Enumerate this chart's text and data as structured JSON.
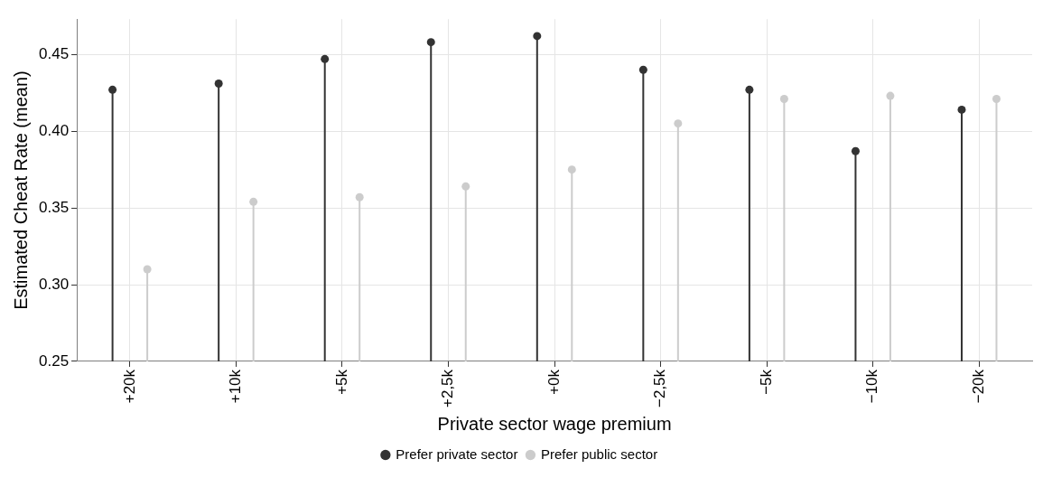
{
  "chart_data": {
    "type": "lollipop",
    "xlabel": "Private sector wage premium",
    "ylabel": "Estimated Cheat Rate (mean)",
    "categories": [
      "+20k",
      "+10k",
      "+5k",
      "+2,5k",
      "+0k",
      "−2,5k",
      "−5k",
      "−10k",
      "−20k"
    ],
    "series": [
      {
        "name": "Prefer private sector",
        "color": "#333333",
        "values": [
          0.427,
          0.431,
          0.447,
          0.458,
          0.462,
          0.44,
          0.427,
          0.387,
          0.414
        ]
      },
      {
        "name": "Prefer public sector",
        "color": "#cccccc",
        "values": [
          0.31,
          0.354,
          0.357,
          0.364,
          0.375,
          0.405,
          0.421,
          0.423,
          0.421
        ]
      }
    ],
    "ylim": [
      0.25,
      0.473
    ],
    "yticks": [
      0.25,
      {
        "value": 0.3,
        "label": "0.30"
      },
      0.35,
      {
        "value": 0.4,
        "label": "0.40"
      },
      0.45
    ],
    "grid": true,
    "legend": "bottom",
    "marker": "circle"
  }
}
